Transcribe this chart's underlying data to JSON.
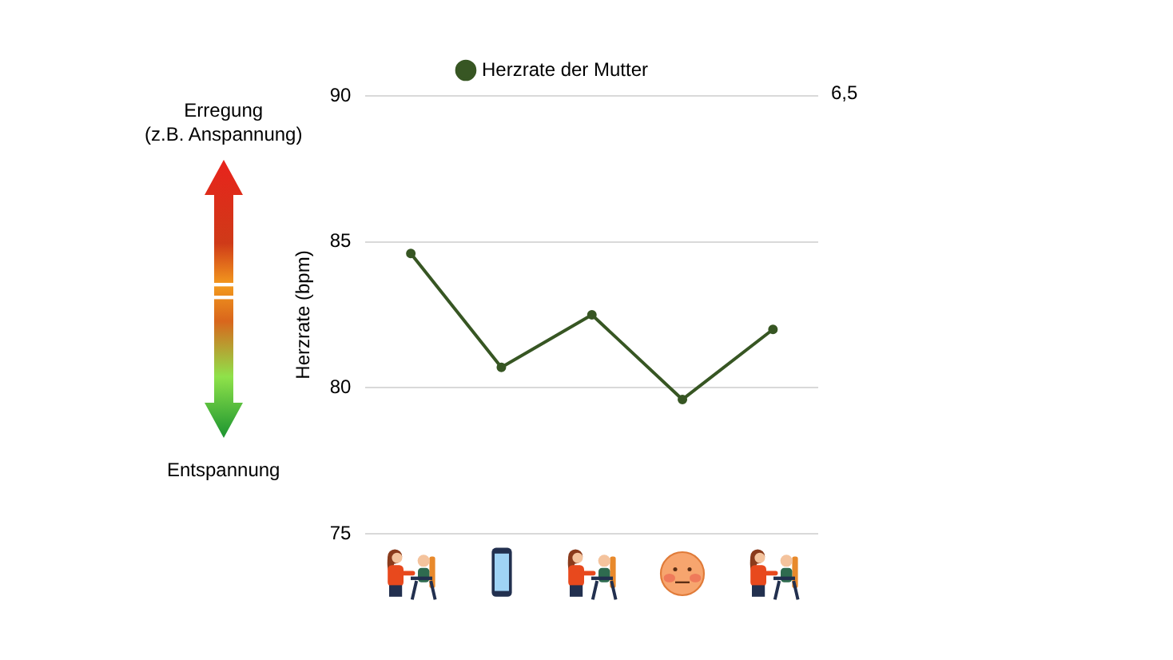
{
  "chart_data": {
    "type": "line",
    "ylabel": "Herzrate (bpm)",
    "categories": [
      null,
      null,
      null,
      null,
      null
    ],
    "series": [
      {
        "name": "Herzrate der Mutter",
        "color": "#375623",
        "values": [
          84.6,
          80.7,
          82.5,
          79.6,
          82.0
        ]
      }
    ],
    "ylim": [
      75,
      90
    ],
    "yticks": [
      75,
      80,
      85,
      90
    ],
    "grid": "y",
    "legend": "top",
    "marker": "circle",
    "tick_labels": "y",
    "annotations": [
      "Erregung\n(z.B. Anspannung)",
      "Entspannung",
      "6,5"
    ]
  }
}
